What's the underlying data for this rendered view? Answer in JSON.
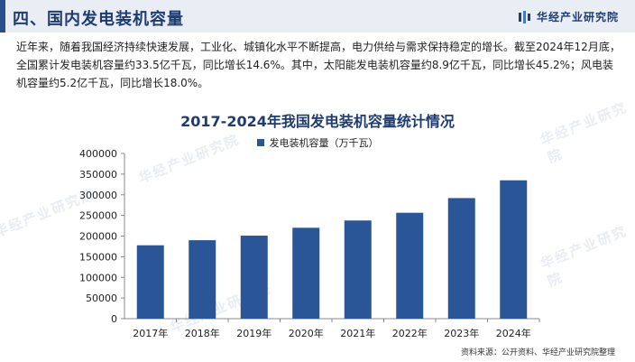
{
  "header": {
    "title": "四、国内发电装机容量",
    "brand": "华经产业研究院"
  },
  "intro": {
    "text": "近年来，随着我国经济持续快速发展，工业化、城镇化水平不断提高，电力供给与需求保持稳定的增长。截至2024年12月底，全国累计发电装机容量约33.5亿千瓦，同比增长14.6%。其中，太阳能发电装机容量约8.9亿千瓦，同比增长45.2%；风电装机容量约5.2亿千瓦，同比增长18.0%。"
  },
  "chart_data": {
    "type": "bar",
    "title": "2017-2024年我国发电装机容量统计情况",
    "categories": [
      "2017年",
      "2018年",
      "2019年",
      "2020年",
      "2021年",
      "2022年",
      "2023年",
      "2024年"
    ],
    "series": [
      {
        "name": "发电装机容量（万千瓦）",
        "values": [
          177703,
          189967,
          201006,
          220058,
          237692,
          256405,
          291965,
          335000
        ],
        "color": "#2a5597"
      }
    ],
    "y_ticks": [
      "0",
      "50000",
      "100000",
      "150000",
      "200000",
      "250000",
      "300000",
      "350000",
      "400000"
    ],
    "ylim": [
      0,
      400000
    ],
    "grid": false,
    "legend_position": "top-center"
  },
  "footer": {
    "source": "资料来源：公开资料、华经产业研究院整理"
  },
  "watermarks": [
    "华经产业研究院",
    "华经产业研究院",
    "华经产业研究院",
    "华经产业研究院",
    "华经产业研究院"
  ]
}
